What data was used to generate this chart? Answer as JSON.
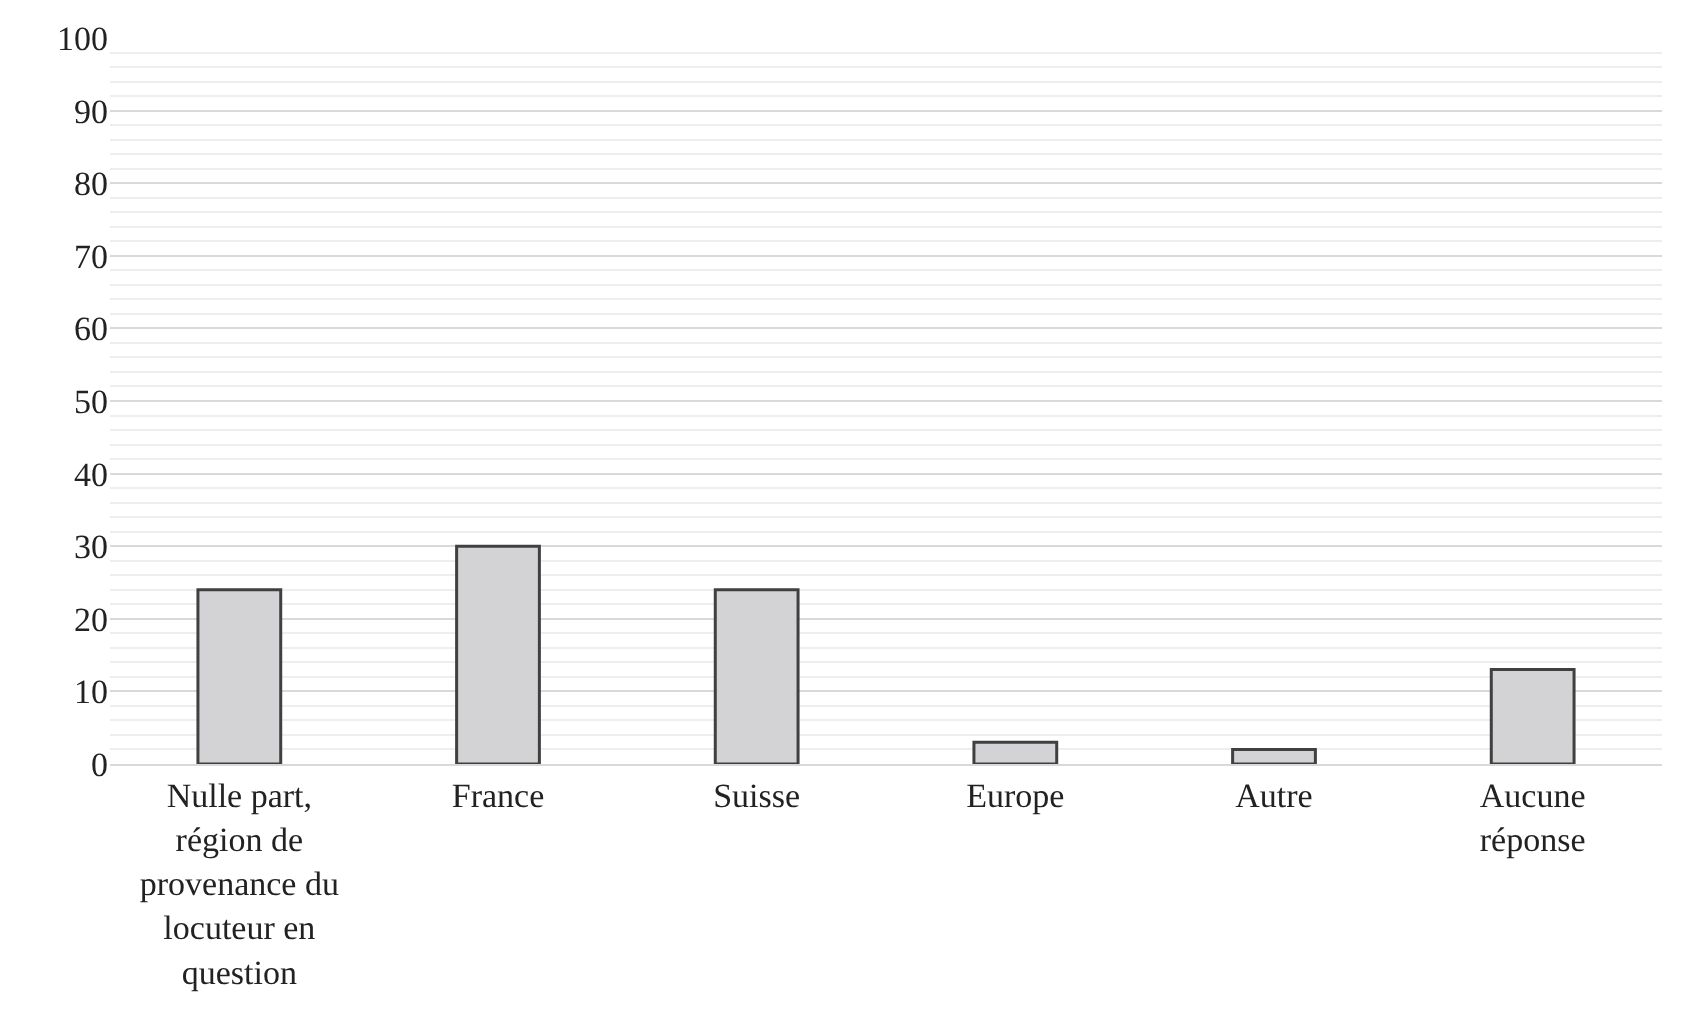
{
  "chart_data": {
    "type": "bar",
    "categories": [
      "Nulle part, région de provenance du locuteur en question",
      "France",
      "Suisse",
      "Europe",
      "Autre",
      "Aucune réponse"
    ],
    "values": [
      24,
      30,
      24,
      3,
      2,
      13
    ],
    "color": "#d3d3d5",
    "ylim": [
      0,
      100
    ],
    "yticks": [
      0,
      10,
      20,
      30,
      40,
      50,
      60,
      70,
      80,
      90,
      100
    ],
    "grid": "y"
  }
}
